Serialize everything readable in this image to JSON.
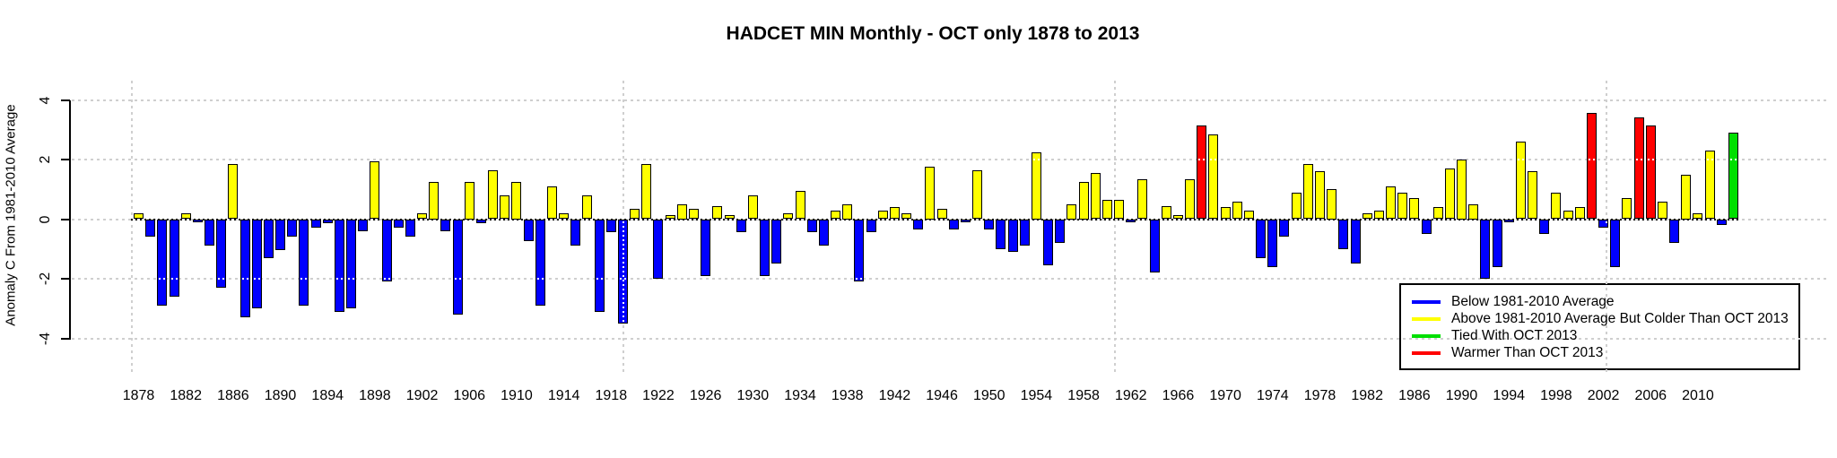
{
  "title": "HADCET MIN Monthly - OCT only 1878 to 2013",
  "y_axis": {
    "label": "Anomaly C From 1981-2010 Average",
    "ticks": [
      4,
      2,
      0,
      -2,
      -4
    ]
  },
  "chart_data": {
    "type": "bar",
    "title": "HADCET MIN Monthly - OCT only 1878 to 2013",
    "xlabel": "",
    "ylabel": "Anomaly C From 1981-2010 Average",
    "ylim": [
      -4,
      4
    ],
    "y_ticks": [
      4,
      2,
      0,
      -2,
      -4
    ],
    "grid": "dotted",
    "legend_position": "bottom-right",
    "start_year": 1878,
    "end_year": 2013,
    "x_tick_years": [
      1878,
      1882,
      1886,
      1890,
      1894,
      1898,
      1902,
      1906,
      1910,
      1914,
      1918,
      1922,
      1926,
      1930,
      1934,
      1938,
      1942,
      1946,
      1950,
      1954,
      1958,
      1962,
      1966,
      1970,
      1974,
      1978,
      1982,
      1986,
      1990,
      1994,
      1998,
      2002,
      2006,
      2010
    ],
    "values": [
      0.2,
      -0.6,
      -2.9,
      -2.6,
      0.2,
      -0.1,
      -0.9,
      -2.3,
      1.85,
      -3.3,
      -3.0,
      -1.3,
      -1.05,
      -0.6,
      -2.9,
      -0.3,
      -0.15,
      -3.1,
      -3.0,
      -0.4,
      1.95,
      -2.1,
      -0.3,
      -0.6,
      0.2,
      1.25,
      -0.4,
      -3.2,
      1.25,
      -0.15,
      1.65,
      0.8,
      1.25,
      -0.75,
      -2.9,
      1.1,
      0.2,
      -0.9,
      0.8,
      -3.1,
      -0.45,
      -3.5,
      0.35,
      1.85,
      -2.0,
      0.15,
      0.5,
      0.35,
      -1.9,
      0.45,
      0.15,
      -0.45,
      0.8,
      -1.9,
      -1.5,
      0.2,
      0.95,
      -0.45,
      -0.9,
      0.3,
      0.5,
      -2.1,
      -0.45,
      0.3,
      0.4,
      0.2,
      -0.35,
      1.75,
      0.35,
      -0.35,
      -0.1,
      1.65,
      -0.35,
      -1.0,
      -1.1,
      -0.9,
      2.25,
      -1.55,
      -0.8,
      0.5,
      1.25,
      1.55,
      0.65,
      0.65,
      -0.1,
      1.35,
      -1.8,
      0.45,
      0.15,
      1.35,
      3.15,
      2.85,
      0.4,
      0.6,
      0.3,
      -1.3,
      -1.6,
      -0.6,
      0.9,
      1.85,
      1.6,
      1.0,
      -1.0,
      -1.5,
      0.2,
      0.3,
      1.1,
      0.9,
      0.7,
      -0.5,
      0.4,
      1.7,
      2.0,
      0.5,
      -2.0,
      -1.6,
      -0.1,
      2.6,
      1.6,
      -0.5,
      0.9,
      0.3,
      0.4,
      3.55,
      -0.3,
      -1.6,
      0.7,
      3.4,
      3.15,
      0.6,
      -0.8,
      1.5,
      0.2,
      2.3,
      -0.2,
      2.9
    ],
    "category_by_year": [
      "A",
      "B",
      "B",
      "B",
      "A",
      "B",
      "B",
      "B",
      "A",
      "B",
      "B",
      "B",
      "B",
      "B",
      "B",
      "B",
      "B",
      "B",
      "B",
      "B",
      "A",
      "B",
      "B",
      "B",
      "A",
      "A",
      "B",
      "B",
      "A",
      "B",
      "A",
      "A",
      "A",
      "B",
      "B",
      "A",
      "A",
      "B",
      "A",
      "B",
      "B",
      "B",
      "A",
      "A",
      "B",
      "A",
      "A",
      "A",
      "B",
      "A",
      "A",
      "B",
      "A",
      "B",
      "B",
      "A",
      "A",
      "B",
      "B",
      "A",
      "A",
      "B",
      "B",
      "A",
      "A",
      "A",
      "B",
      "A",
      "A",
      "B",
      "B",
      "A",
      "B",
      "B",
      "B",
      "B",
      "A",
      "B",
      "B",
      "A",
      "A",
      "A",
      "A",
      "A",
      "B",
      "A",
      "B",
      "A",
      "A",
      "A",
      "W",
      "A",
      "A",
      "A",
      "A",
      "B",
      "B",
      "B",
      "A",
      "A",
      "A",
      "A",
      "B",
      "B",
      "A",
      "A",
      "A",
      "A",
      "A",
      "B",
      "A",
      "A",
      "A",
      "A",
      "B",
      "B",
      "B",
      "A",
      "A",
      "B",
      "A",
      "A",
      "A",
      "W",
      "B",
      "B",
      "A",
      "W",
      "W",
      "A",
      "B",
      "A",
      "A",
      "A",
      "B",
      "T"
    ],
    "category_colors": {
      "B": "#0000FF",
      "A": "#FFFF00",
      "T": "#00DF00",
      "W": "#FF0000"
    },
    "legend": [
      {
        "code": "B",
        "label": "Below 1981-2010 Average"
      },
      {
        "code": "A",
        "label": "Above 1981-2010 Average But Colder Than OCT 2013"
      },
      {
        "code": "T",
        "label": "Tied With OCT 2013"
      },
      {
        "code": "W",
        "label": "Warmer Than OCT 2013"
      }
    ]
  }
}
